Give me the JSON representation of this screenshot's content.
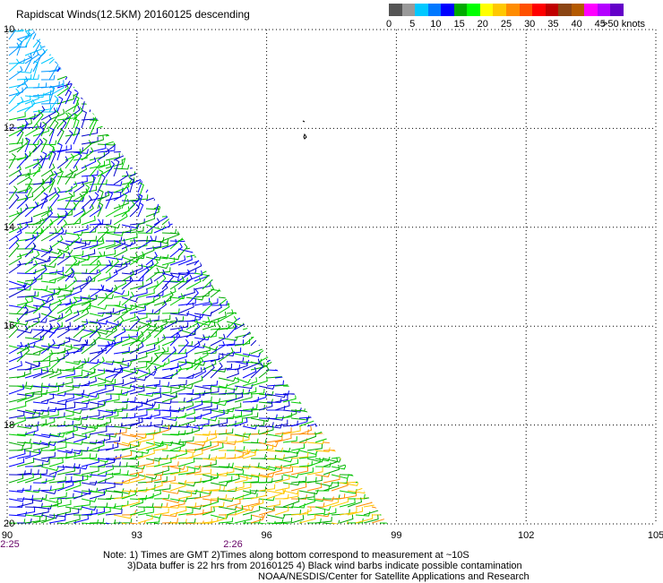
{
  "title": "Rapidscat Winds(12.5KM) 20160125 descending",
  "colorbar": {
    "colors": [
      "#555555",
      "#999999",
      "#00c8ff",
      "#0078ff",
      "#0000ff",
      "#00aa00",
      "#00ff00",
      "#ffff00",
      "#ffc800",
      "#ff8c00",
      "#ff5000",
      "#ff0000",
      "#c00000",
      "#8b4513",
      "#b45a00",
      "#ff00ff",
      "#b400ff",
      "#6400c8"
    ],
    "labels": [
      "0",
      "5",
      "10",
      "15",
      "20",
      "25",
      "30",
      "35",
      "40",
      "45",
      ">50 knots"
    ]
  },
  "axes": {
    "lon_ticks": [
      "90",
      "93",
      "96",
      "99",
      "102",
      "105"
    ],
    "lat_ticks": [
      "10",
      "12",
      "14",
      "16",
      "18",
      "20"
    ],
    "lon_range": [
      90,
      105
    ],
    "lat_range": [
      10,
      20
    ],
    "grid": "dotted"
  },
  "times": [
    "2:25",
    "2:26"
  ],
  "notes": [
    "Note: 1) Times are GMT 2)Times along bottom correspond to measurement at ~10S",
    "3)Data buffer is 22 hrs from 20160125 4) Black wind barbs indicate possible contamination",
    "NOAA/NESDIS/Center for Satellite Applications and Research"
  ],
  "swath": {
    "north_edge_lon_at_lat10": 90.6,
    "east_edge_lon_at_lat20": 98.8,
    "color_regions": [
      {
        "name": "northwest-light-blue",
        "colors": [
          "#00c8ff",
          "#0096ff"
        ]
      },
      {
        "name": "interior-mixed",
        "colors": [
          "#0000ff",
          "#0000cc",
          "#00aa00",
          "#00cc00"
        ]
      },
      {
        "name": "south-east-green-yellow",
        "colors": [
          "#00aa00",
          "#00cc00",
          "#ffc800",
          "#ff8c00"
        ]
      }
    ]
  }
}
